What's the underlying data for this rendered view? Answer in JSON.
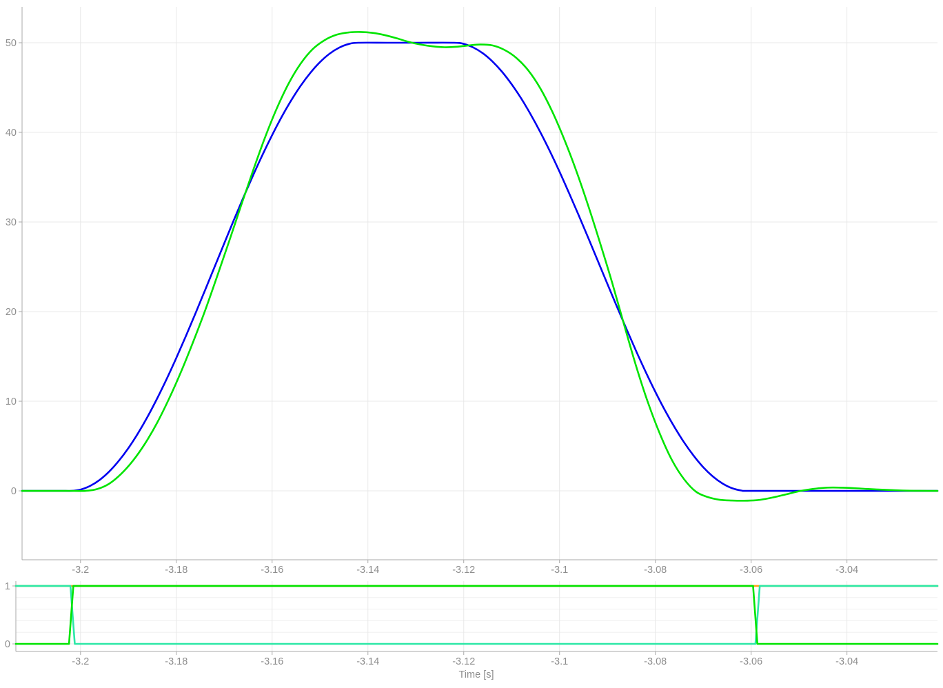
{
  "figure": {
    "xlabel": "Time [s]"
  },
  "palette": {
    "reference_blue": "#0000f0",
    "actual_green": "#00e400",
    "signal_mint": "#2ce8a6",
    "signal_orange": "#ffa216",
    "grid": "#e8e8e8",
    "minor_grid": "#f0f0f0",
    "spine": "#aaaaaa",
    "tick_text": "#8e8e8e"
  },
  "chart_data": [
    {
      "type": "line",
      "name": "trajectory-panel",
      "grid": true,
      "xlim": [
        -3.2122,
        -3.0211
      ],
      "ylim": [
        -7.69,
        54.0
      ],
      "xticks": {
        "values": [
          -3.2,
          -3.18,
          -3.16,
          -3.14,
          -3.12,
          -3.1,
          -3.08,
          -3.06,
          -3.04
        ],
        "labels": [
          "-3.2",
          "-3.18",
          "-3.16",
          "-3.14",
          "-3.12",
          "-3.1",
          "-3.08",
          "-3.06",
          "-3.04"
        ]
      },
      "yticks": {
        "values": [
          0,
          10,
          20,
          30,
          40,
          50
        ],
        "labels": [
          "0",
          "10",
          "20",
          "30",
          "40",
          "50"
        ]
      },
      "minor_yticks": [],
      "series": [
        {
          "name": "reference-trajectory",
          "color": "#0000f0",
          "smooth": true,
          "points": [
            [
              -3.2122,
              0
            ],
            [
              -3.208,
              0
            ],
            [
              -3.204,
              0
            ],
            [
              -3.202,
              0
            ],
            [
              -3.2,
              0.14
            ],
            [
              -3.198,
              0.55
            ],
            [
              -3.196,
              1.22
            ],
            [
              -3.194,
              2.16
            ],
            [
              -3.192,
              3.35
            ],
            [
              -3.19,
              4.77
            ],
            [
              -3.188,
              6.42
            ],
            [
              -3.186,
              8.27
            ],
            [
              -3.184,
              10.31
            ],
            [
              -3.182,
              12.5
            ],
            [
              -3.18,
              14.83
            ],
            [
              -3.178,
              17.27
            ],
            [
              -3.176,
              19.8
            ],
            [
              -3.174,
              22.39
            ],
            [
              -3.172,
              25
            ],
            [
              -3.17,
              27.61
            ],
            [
              -3.168,
              30.2
            ],
            [
              -3.166,
              32.73
            ],
            [
              -3.164,
              35.17
            ],
            [
              -3.162,
              37.5
            ],
            [
              -3.16,
              39.69
            ],
            [
              -3.158,
              41.73
            ],
            [
              -3.156,
              43.58
            ],
            [
              -3.154,
              45.23
            ],
            [
              -3.152,
              46.65
            ],
            [
              -3.15,
              47.84
            ],
            [
              -3.148,
              48.78
            ],
            [
              -3.146,
              49.45
            ],
            [
              -3.144,
              49.86
            ],
            [
              -3.142,
              50
            ],
            [
              -3.136,
              50
            ],
            [
              -3.13,
              50
            ],
            [
              -3.122,
              50
            ],
            [
              -3.12,
              49.87
            ],
            [
              -3.118,
              49.47
            ],
            [
              -3.116,
              48.82
            ],
            [
              -3.114,
              47.91
            ],
            [
              -3.112,
              46.76
            ],
            [
              -3.11,
              45.37
            ],
            [
              -3.108,
              43.78
            ],
            [
              -3.106,
              41.98
            ],
            [
              -3.104,
              40.01
            ],
            [
              -3.102,
              37.88
            ],
            [
              -3.1,
              35.61
            ],
            [
              -3.098,
              33.21
            ],
            [
              -3.096,
              30.75
            ],
            [
              -3.094,
              28.22
            ],
            [
              -3.092,
              25.65
            ],
            [
              -3.09,
              23.08
            ],
            [
              -3.088,
              20.53
            ],
            [
              -3.086,
              18.03
            ],
            [
              -3.084,
              15.59
            ],
            [
              -3.082,
              13.26
            ],
            [
              -3.08,
              11.05
            ],
            [
              -3.078,
              8.99
            ],
            [
              -3.076,
              7.11
            ],
            [
              -3.074,
              5.41
            ],
            [
              -3.072,
              3.92
            ],
            [
              -3.07,
              2.64
            ],
            [
              -3.068,
              1.61
            ],
            [
              -3.066,
              0.83
            ],
            [
              -3.064,
              0.3
            ],
            [
              -3.062,
              0.03
            ],
            [
              -3.061,
              0
            ],
            [
              -3.055,
              0
            ],
            [
              -3.045,
              0
            ],
            [
              -3.035,
              0
            ],
            [
              -3.0211,
              0
            ]
          ]
        },
        {
          "name": "measured-trajectory",
          "color": "#00e400",
          "smooth": true,
          "points": [
            [
              -3.2122,
              0
            ],
            [
              -3.207,
              0
            ],
            [
              -3.203,
              0
            ],
            [
              -3.199,
              0
            ],
            [
              -3.1965,
              0.2
            ],
            [
              -3.194,
              0.8
            ],
            [
              -3.1915,
              1.9
            ],
            [
              -3.189,
              3.4
            ],
            [
              -3.1865,
              5.3
            ],
            [
              -3.184,
              7.6
            ],
            [
              -3.1815,
              10.3
            ],
            [
              -3.179,
              13.3
            ],
            [
              -3.1765,
              16.6
            ],
            [
              -3.174,
              20.1
            ],
            [
              -3.1715,
              23.9
            ],
            [
              -3.169,
              27.8
            ],
            [
              -3.1665,
              31.8
            ],
            [
              -3.164,
              35.7
            ],
            [
              -3.1615,
              39.4
            ],
            [
              -3.159,
              42.7
            ],
            [
              -3.1565,
              45.5
            ],
            [
              -3.154,
              47.7
            ],
            [
              -3.1515,
              49.3
            ],
            [
              -3.149,
              50.3
            ],
            [
              -3.1465,
              50.9
            ],
            [
              -3.144,
              51.15
            ],
            [
              -3.1415,
              51.2
            ],
            [
              -3.139,
              51.1
            ],
            [
              -3.1365,
              50.85
            ],
            [
              -3.134,
              50.5
            ],
            [
              -3.1315,
              50.1
            ],
            [
              -3.129,
              49.8
            ],
            [
              -3.1265,
              49.6
            ],
            [
              -3.124,
              49.5
            ],
            [
              -3.1215,
              49.55
            ],
            [
              -3.119,
              49.7
            ],
            [
              -3.1165,
              49.8
            ],
            [
              -3.114,
              49.7
            ],
            [
              -3.1115,
              49.2
            ],
            [
              -3.109,
              48.3
            ],
            [
              -3.1065,
              46.9
            ],
            [
              -3.104,
              44.9
            ],
            [
              -3.1015,
              42.3
            ],
            [
              -3.099,
              39.2
            ],
            [
              -3.0965,
              35.7
            ],
            [
              -3.094,
              31.8
            ],
            [
              -3.0915,
              27.6
            ],
            [
              -3.089,
              23.2
            ],
            [
              -3.0865,
              18.5
            ],
            [
              -3.084,
              13.9
            ],
            [
              -3.0815,
              9.8
            ],
            [
              -3.079,
              6.3
            ],
            [
              -3.0765,
              3.4
            ],
            [
              -3.074,
              1.3
            ],
            [
              -3.0715,
              -0.1
            ],
            [
              -3.069,
              -0.7
            ],
            [
              -3.0665,
              -1.0
            ],
            [
              -3.064,
              -1.08
            ],
            [
              -3.0615,
              -1.1
            ],
            [
              -3.059,
              -1.05
            ],
            [
              -3.057,
              -0.9
            ],
            [
              -3.0545,
              -0.62
            ],
            [
              -3.052,
              -0.3
            ],
            [
              -3.0505,
              -0.1
            ],
            [
              -3.049,
              0.06
            ],
            [
              -3.047,
              0.22
            ],
            [
              -3.045,
              0.33
            ],
            [
              -3.043,
              0.37
            ],
            [
              -3.041,
              0.35
            ],
            [
              -3.0385,
              0.3
            ],
            [
              -3.036,
              0.22
            ],
            [
              -3.0335,
              0.15
            ],
            [
              -3.031,
              0.09
            ],
            [
              -3.0285,
              0.04
            ],
            [
              -3.026,
              0.01
            ],
            [
              -3.023,
              0
            ],
            [
              -3.0211,
              0
            ]
          ]
        }
      ]
    },
    {
      "type": "line",
      "name": "digital-signal-panel",
      "grid": true,
      "xlim": [
        -3.2135,
        -3.0211
      ],
      "ylim": [
        -0.131,
        1.083
      ],
      "xticks": {
        "values": [
          -3.2,
          -3.18,
          -3.16,
          -3.14,
          -3.12,
          -3.1,
          -3.08,
          -3.06,
          -3.04
        ],
        "labels": [
          "-3.2",
          "-3.18",
          "-3.16",
          "-3.14",
          "-3.12",
          "-3.1",
          "-3.08",
          "-3.06",
          "-3.04"
        ]
      },
      "yticks": {
        "values": [
          0,
          1
        ],
        "labels": [
          "0",
          "1"
        ]
      },
      "minor_yticks": [
        0.2,
        0.4,
        0.6,
        0.8
      ],
      "series": [
        {
          "name": "constant-high-flag",
          "color": "#ffa216",
          "smooth": false,
          "points": [
            [
              -3.2135,
              1
            ],
            [
              -3.0211,
              1
            ]
          ]
        },
        {
          "name": "inverted-gate-flag",
          "color": "#2ce8a6",
          "smooth": false,
          "points": [
            [
              -3.2135,
              1
            ],
            [
              -3.2021,
              1
            ],
            [
              -3.2012,
              0
            ],
            [
              -3.0591,
              0
            ],
            [
              -3.0582,
              1
            ],
            [
              -3.0211,
              1
            ]
          ]
        },
        {
          "name": "gate-flag",
          "color": "#00e400",
          "smooth": false,
          "points": [
            [
              -3.2135,
              0
            ],
            [
              -3.2024,
              0
            ],
            [
              -3.2015,
              1
            ],
            [
              -3.0596,
              1
            ],
            [
              -3.0587,
              0
            ],
            [
              -3.0211,
              0
            ]
          ]
        }
      ]
    }
  ]
}
